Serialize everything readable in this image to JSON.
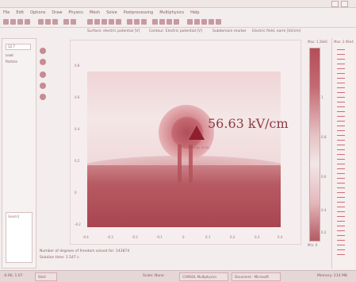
{
  "window": {
    "menu": [
      "File",
      "Edit",
      "Options",
      "Draw",
      "Physics",
      "Mesh",
      "Solve",
      "Postprocessing",
      "Multiphysics",
      "Help"
    ]
  },
  "subtitle": [
    "Surface: electric potential [V]",
    "Contour: Electric potential [V]",
    "Subdomain marker",
    "Electric field, norm [kV/cm]"
  ],
  "left_panel": {
    "field1": "12.7",
    "label1": "Load",
    "label2": "Particle",
    "box_label": "Geom1"
  },
  "plot": {
    "value_label": "56.63 kV/cm",
    "point_label": "Point (0, -0.01)",
    "x_ticks": [
      "-0.4",
      "-0.3",
      "-0.2",
      "-0.1",
      "0",
      "0.1",
      "0.2",
      "0.3",
      "0.4"
    ],
    "y_ticks": [
      "0.8",
      "0.6",
      "0.4",
      "0.2",
      "0",
      "-0.2"
    ]
  },
  "colorbar": {
    "max_label": "Max: 1.28e6",
    "max2_label": "Max: 2.06e4",
    "min_label": "Min: 0",
    "ticks": [
      "1",
      "0.8",
      "0.6",
      "0.4",
      "0.2"
    ]
  },
  "status": {
    "line1": "Number of degrees of freedom solved for: 143874",
    "line2": "Solution time: 1.547 s"
  },
  "bottom": {
    "coords": "-0.96, 1.07",
    "mode": "Scale: None",
    "right": "Memory: 214 MB"
  },
  "taskbar": [
    "Start",
    "COMSOL Multiphysics",
    "Document - Microsoft"
  ]
}
